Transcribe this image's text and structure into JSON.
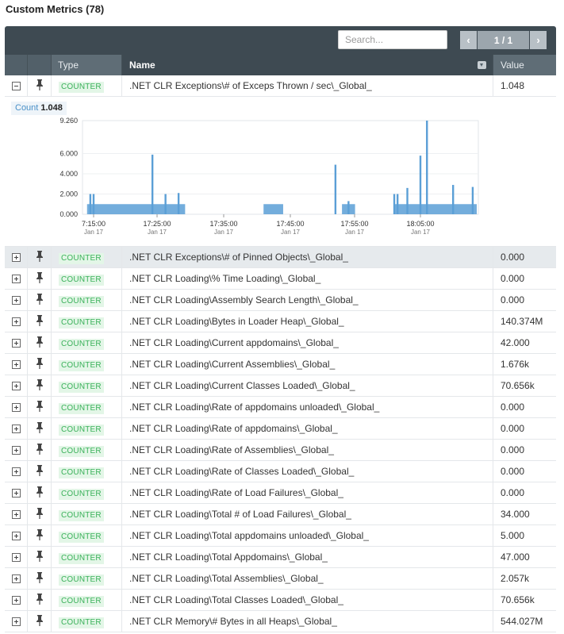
{
  "title": "Custom Metrics (78)",
  "search": {
    "placeholder": "Search..."
  },
  "pager": {
    "prev_icon": "chevron-left-icon",
    "next_icon": "chevron-right-icon",
    "label": "1 / 1"
  },
  "columns": {
    "type": "Type",
    "name": "Name",
    "value": "Value"
  },
  "expanded_row": {
    "type": "COUNTER",
    "name": ".NET CLR Exceptions\\# of Exceps Thrown / sec\\_Global_",
    "value": "1.048"
  },
  "detail": {
    "count_label": "Count",
    "count_value": "1.048"
  },
  "chart_data": {
    "type": "area",
    "series_color": "#5b9fd6",
    "y_ticks": [
      "0.000",
      "2.000",
      "4.000",
      "6.000",
      "9.260"
    ],
    "ylim": [
      0,
      9.26
    ],
    "x_ticks": [
      {
        "time": "7:15:00",
        "date": "Jan 17"
      },
      {
        "time": "17:25:00",
        "date": "Jan 17"
      },
      {
        "time": "17:35:00",
        "date": "Jan 17"
      },
      {
        "time": "17:45:00",
        "date": "Jan 17"
      },
      {
        "time": "17:55:00",
        "date": "Jan 17"
      },
      {
        "time": "18:05:00",
        "date": "Jan 17"
      }
    ],
    "baseline": 1.0,
    "segments": [
      {
        "start": "17:14:00",
        "end": "17:29:00"
      },
      {
        "start": "17:41:00",
        "end": "17:44:00"
      },
      {
        "start": "17:53:00",
        "end": "17:55:00"
      },
      {
        "start": "18:01:00",
        "end": "18:14:00"
      }
    ],
    "spikes": [
      {
        "time": "17:14:30",
        "value": 2.0
      },
      {
        "time": "17:15:00",
        "value": 2.0
      },
      {
        "time": "17:24:00",
        "value": 5.9
      },
      {
        "time": "17:26:00",
        "value": 2.0
      },
      {
        "time": "17:28:00",
        "value": 2.1
      },
      {
        "time": "17:52:00",
        "value": 4.9
      },
      {
        "time": "17:54:00",
        "value": 1.3
      },
      {
        "time": "18:01:00",
        "value": 2.0
      },
      {
        "time": "18:01:30",
        "value": 2.0
      },
      {
        "time": "18:03:00",
        "value": 2.6
      },
      {
        "time": "18:05:00",
        "value": 5.8
      },
      {
        "time": "18:06:00",
        "value": 9.26
      },
      {
        "time": "18:10:00",
        "value": 2.9
      },
      {
        "time": "18:13:00",
        "value": 2.7
      }
    ]
  },
  "rows": [
    {
      "type": "COUNTER",
      "name": ".NET CLR Exceptions\\# of Pinned Objects\\_Global_",
      "value": "0.000",
      "highlight": true
    },
    {
      "type": "COUNTER",
      "name": ".NET CLR Loading\\% Time Loading\\_Global_",
      "value": "0.000"
    },
    {
      "type": "COUNTER",
      "name": ".NET CLR Loading\\Assembly Search Length\\_Global_",
      "value": "0.000"
    },
    {
      "type": "COUNTER",
      "name": ".NET CLR Loading\\Bytes in Loader Heap\\_Global_",
      "value": "140.374M"
    },
    {
      "type": "COUNTER",
      "name": ".NET CLR Loading\\Current appdomains\\_Global_",
      "value": "42.000"
    },
    {
      "type": "COUNTER",
      "name": ".NET CLR Loading\\Current Assemblies\\_Global_",
      "value": "1.676k"
    },
    {
      "type": "COUNTER",
      "name": ".NET CLR Loading\\Current Classes Loaded\\_Global_",
      "value": "70.656k"
    },
    {
      "type": "COUNTER",
      "name": ".NET CLR Loading\\Rate of appdomains unloaded\\_Global_",
      "value": "0.000"
    },
    {
      "type": "COUNTER",
      "name": ".NET CLR Loading\\Rate of appdomains\\_Global_",
      "value": "0.000"
    },
    {
      "type": "COUNTER",
      "name": ".NET CLR Loading\\Rate of Assemblies\\_Global_",
      "value": "0.000"
    },
    {
      "type": "COUNTER",
      "name": ".NET CLR Loading\\Rate of Classes Loaded\\_Global_",
      "value": "0.000"
    },
    {
      "type": "COUNTER",
      "name": ".NET CLR Loading\\Rate of Load Failures\\_Global_",
      "value": "0.000"
    },
    {
      "type": "COUNTER",
      "name": ".NET CLR Loading\\Total # of Load Failures\\_Global_",
      "value": "34.000"
    },
    {
      "type": "COUNTER",
      "name": ".NET CLR Loading\\Total appdomains unloaded\\_Global_",
      "value": "5.000"
    },
    {
      "type": "COUNTER",
      "name": ".NET CLR Loading\\Total Appdomains\\_Global_",
      "value": "47.000"
    },
    {
      "type": "COUNTER",
      "name": ".NET CLR Loading\\Total Assemblies\\_Global_",
      "value": "2.057k"
    },
    {
      "type": "COUNTER",
      "name": ".NET CLR Loading\\Total Classes Loaded\\_Global_",
      "value": "70.656k"
    },
    {
      "type": "COUNTER",
      "name": ".NET CLR Memory\\# Bytes in all Heaps\\_Global_",
      "value": "544.027M"
    }
  ]
}
